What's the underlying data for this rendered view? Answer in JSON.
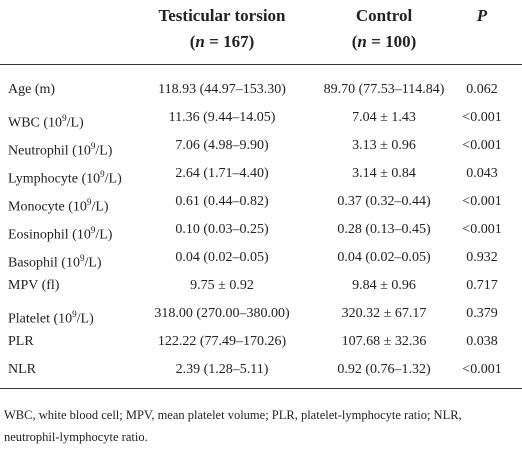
{
  "table": {
    "header": {
      "columns": [
        "",
        "Testicular torsion",
        "Control",
        "P"
      ],
      "subheaders": [
        [
          "(",
          "n",
          " = 167)"
        ],
        [
          "(",
          "n",
          " = 100)"
        ]
      ]
    },
    "rows": [
      {
        "label": [
          "Age (m)"
        ],
        "testicular": "118.93 (44.97–153.30)",
        "control": "89.70 (77.53–114.84)",
        "p": "0.062"
      },
      {
        "label": [
          "WBC (10",
          "9",
          "/L)"
        ],
        "testicular": "11.36 (9.44–14.05)",
        "control": "7.04 ± 1.43",
        "p": "<0.001"
      },
      {
        "label": [
          "Neutrophil (10",
          "9",
          "/L)"
        ],
        "testicular": "7.06 (4.98–9.90)",
        "control": "3.13 ± 0.96",
        "p": "<0.001"
      },
      {
        "label": [
          "Lymphocyte (10",
          "9",
          "/L)"
        ],
        "testicular": "2.64 (1.71–4.40)",
        "control": "3.14 ± 0.84",
        "p": "0.043"
      },
      {
        "label": [
          "Monocyte (10",
          "9",
          "/L)"
        ],
        "testicular": "0.61 (0.44–0.82)",
        "control": "0.37 (0.32–0.44)",
        "p": "<0.001"
      },
      {
        "label": [
          "Eosinophil (10",
          "9",
          "/L)"
        ],
        "testicular": "0.10 (0.03–0.25)",
        "control": "0.28 (0.13–0.45)",
        "p": "<0.001"
      },
      {
        "label": [
          "Basophil (10",
          "9",
          "/L)"
        ],
        "testicular": "0.04 (0.02–0.05)",
        "control": "0.04 (0.02–0.05)",
        "p": "0.932"
      },
      {
        "label": [
          "MPV (fl)"
        ],
        "testicular": "9.75 ± 0.92",
        "control": "9.84 ± 0.96",
        "p": "0.717"
      },
      {
        "label": [
          "Platelet (10",
          "9",
          "/L)"
        ],
        "testicular": "318.00 (270.00–380.00)",
        "control": "320.32 ± 67.17",
        "p": "0.379"
      },
      {
        "label": [
          "PLR"
        ],
        "testicular": "122.22 (77.49–170.26)",
        "control": "107.68 ± 32.36",
        "p": "0.038"
      },
      {
        "label": [
          "NLR"
        ],
        "testicular": "2.39 (1.28–5.11)",
        "control": "0.92 (0.76–1.32)",
        "p": "<0.001"
      }
    ],
    "footnote": "WBC, white blood cell; MPV, mean platelet volume; PLR, platelet-lymphocyte ratio; NLR, neutrophil-lymphocyte ratio."
  }
}
